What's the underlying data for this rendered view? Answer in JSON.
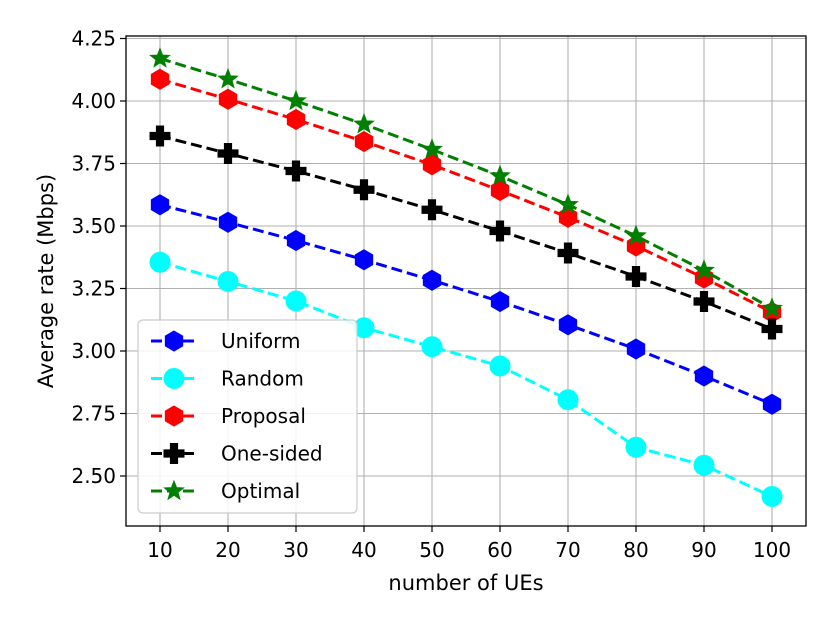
{
  "chart_data": {
    "type": "line",
    "title": "",
    "xlabel": "number of UEs",
    "ylabel": "Average rate (Mbps)",
    "x": [
      10,
      20,
      30,
      40,
      50,
      60,
      70,
      80,
      90,
      100
    ],
    "x_tick_labels": [
      "10",
      "20",
      "30",
      "40",
      "50",
      "60",
      "70",
      "80",
      "90",
      "100"
    ],
    "xlim": [
      5,
      105
    ],
    "ylim": [
      2.3,
      4.26
    ],
    "y_ticks": [
      2.5,
      2.75,
      3.0,
      3.25,
      3.5,
      3.75,
      4.0,
      4.25
    ],
    "y_tick_labels": [
      "2.50",
      "2.75",
      "3.00",
      "3.25",
      "3.50",
      "3.75",
      "4.00",
      "4.25"
    ],
    "grid": true,
    "legend_position": "lower-left",
    "series": [
      {
        "name": "Uniform",
        "color": "#0000ff",
        "marker": "hexagon",
        "line_style": "dashed",
        "values": [
          3.585,
          3.515,
          3.442,
          3.365,
          3.283,
          3.198,
          3.105,
          3.008,
          2.9,
          2.787
        ]
      },
      {
        "name": "Random",
        "color": "#00ffff",
        "marker": "circle",
        "line_style": "dashed",
        "values": [
          3.355,
          3.278,
          3.2,
          3.093,
          3.017,
          2.94,
          2.805,
          2.615,
          2.543,
          2.418
        ]
      },
      {
        "name": "Proposal",
        "color": "#ff0000",
        "marker": "hexagon",
        "line_style": "dashed",
        "values": [
          4.087,
          4.007,
          3.926,
          3.838,
          3.745,
          3.642,
          3.535,
          3.42,
          3.292,
          3.155
        ]
      },
      {
        "name": "One-sided",
        "color": "#000000",
        "marker": "plus",
        "line_style": "dashed",
        "values": [
          3.86,
          3.79,
          3.72,
          3.645,
          3.565,
          3.48,
          3.392,
          3.298,
          3.198,
          3.088
        ]
      },
      {
        "name": "Optimal",
        "color": "#008000",
        "marker": "star",
        "line_style": "dashed",
        "values": [
          4.17,
          4.087,
          4.0,
          3.907,
          3.806,
          3.7,
          3.585,
          3.46,
          3.322,
          3.17
        ]
      }
    ]
  }
}
